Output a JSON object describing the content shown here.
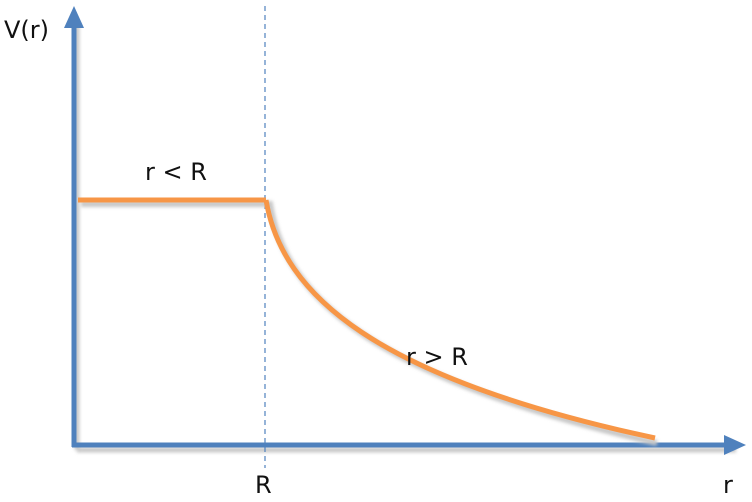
{
  "labels": {
    "y_axis": "V(r)",
    "x_axis": "r",
    "R_tick": "R",
    "inside_region": "r < R",
    "outside_region": "r > R"
  },
  "colors": {
    "axis": "#4f81bd",
    "curve": "#f79646",
    "shadow": "#c8c8c8",
    "guide": "#4f81bd"
  }
}
